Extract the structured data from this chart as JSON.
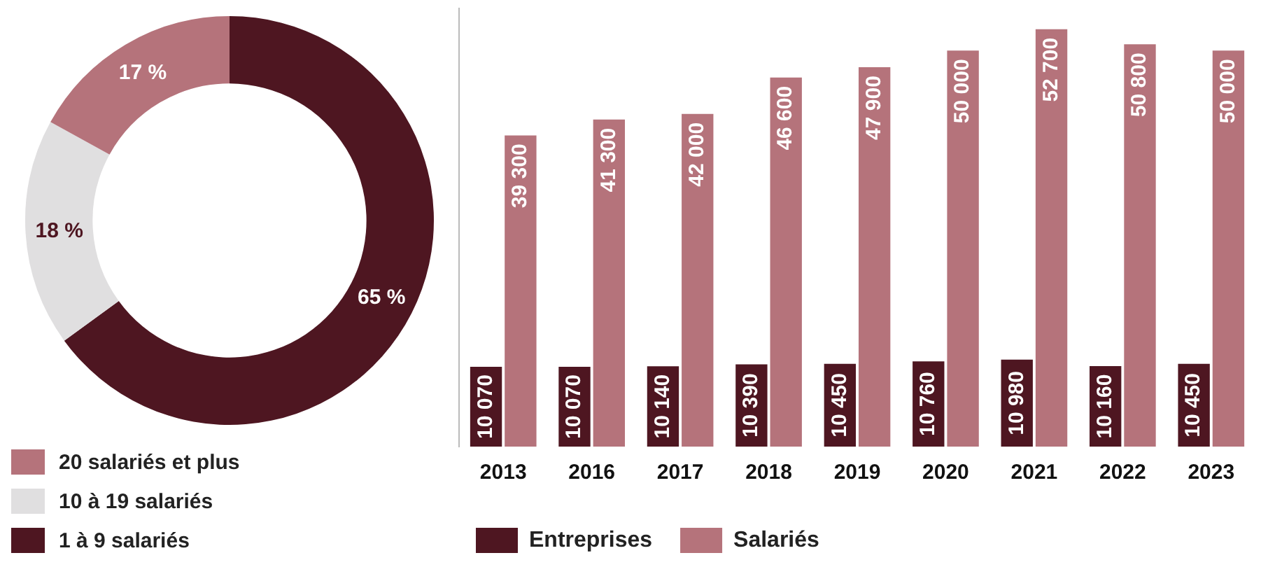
{
  "chart_data": [
    {
      "type": "donut",
      "categories": [
        "1 à 9 salariés",
        "10 à 19 salariés",
        "20 salariés et plus"
      ],
      "values": [
        65,
        18,
        17
      ],
      "colors": [
        "#4e1621",
        "#e0dfe0",
        "#b5737b"
      ],
      "value_labels": [
        "65 %",
        "18 %",
        "17 %"
      ],
      "legend": "bottom left"
    },
    {
      "type": "bar",
      "categories": [
        "2013",
        "2016",
        "2017",
        "2018",
        "2019",
        "2020",
        "2021",
        "2022",
        "2023"
      ],
      "legend": "bottom",
      "tick_labels": "x",
      "grid": false,
      "series": [
        {
          "name": "Entreprises",
          "color": "#4e1621",
          "values": [
            10070,
            10070,
            10140,
            10390,
            10450,
            10760,
            10980,
            10160,
            10450
          ],
          "value_labels": [
            "10 070",
            "10 070",
            "10 140",
            "10 390",
            "10 450",
            "10 760",
            "10 980",
            "10 160",
            "10 450"
          ]
        },
        {
          "name": "Salariés",
          "color": "#b5737b",
          "values": [
            39300,
            41300,
            42000,
            46600,
            47900,
            50000,
            52700,
            50800,
            50000
          ],
          "value_labels": [
            "39 300",
            "41 300",
            "42 000",
            "46 600",
            "47 900",
            "50 000",
            "52 700",
            "50 800",
            "50 000"
          ]
        }
      ]
    }
  ]
}
